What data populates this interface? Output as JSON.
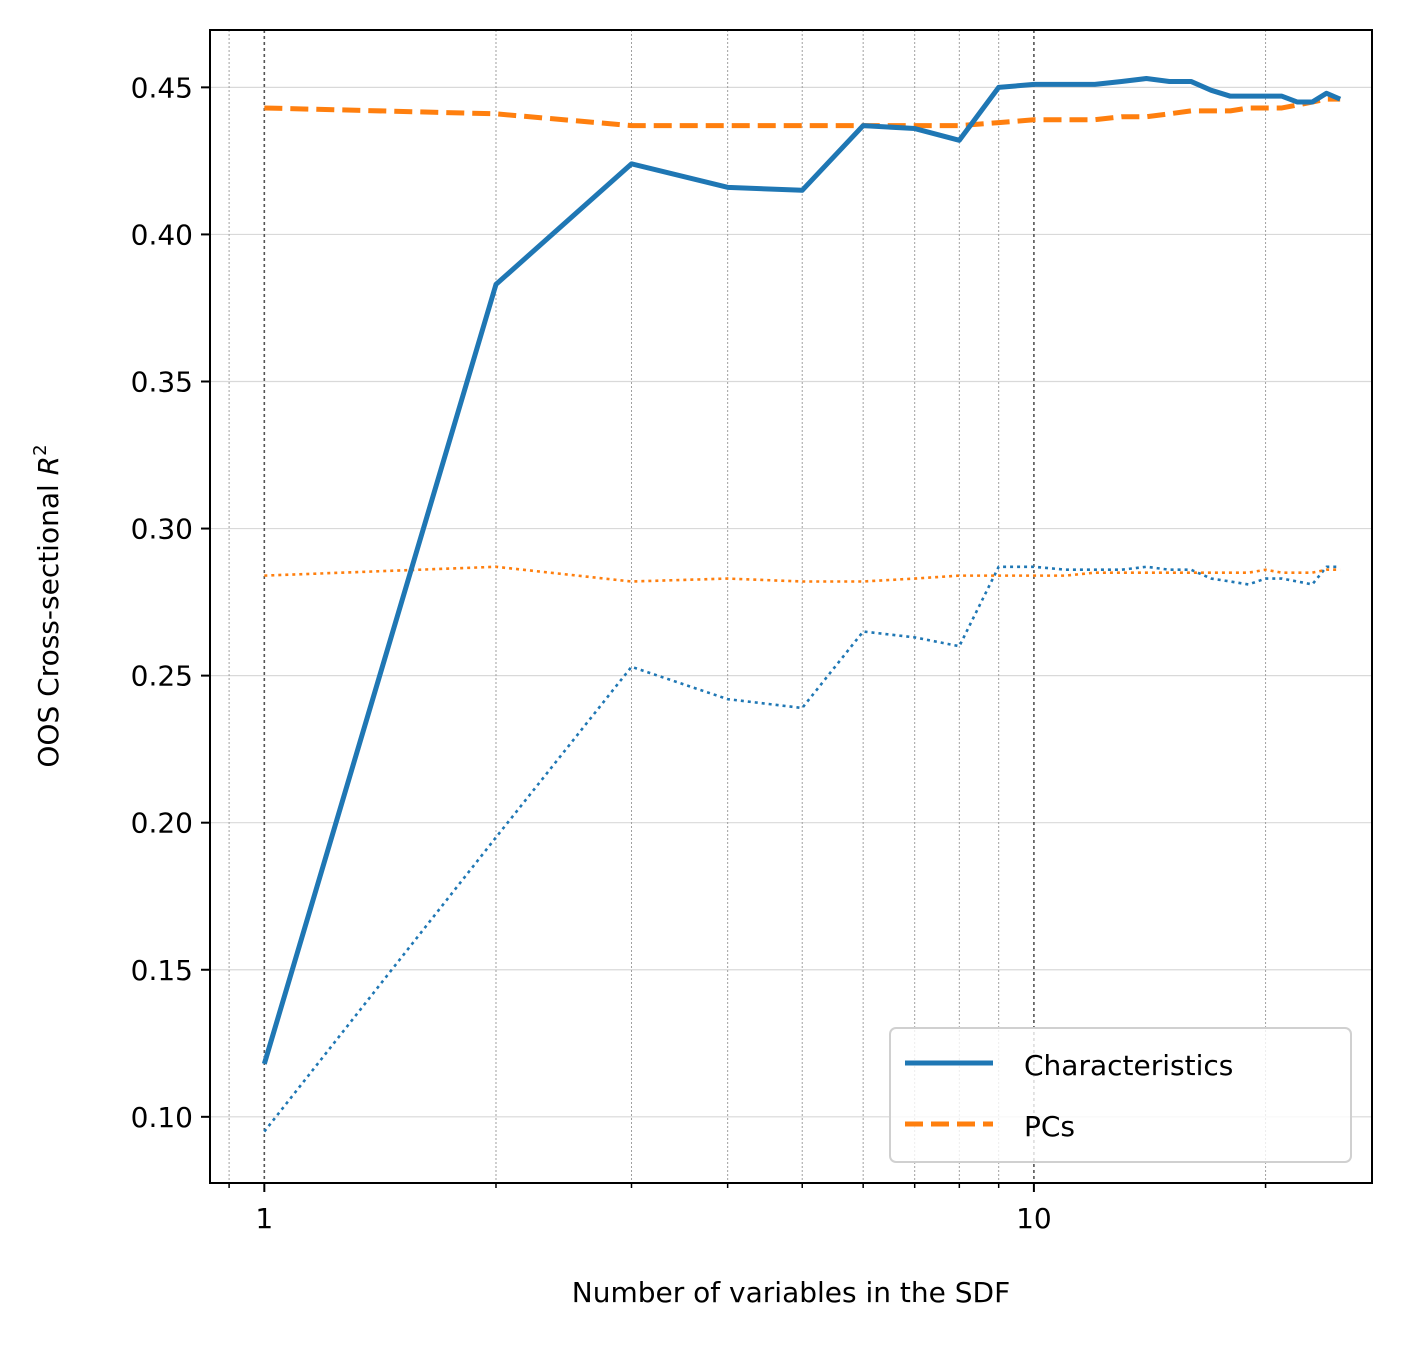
{
  "chart_data": {
    "type": "line",
    "title": "",
    "xlabel": "Number of variables in the SDF",
    "ylabel": "OOS Cross-sectional",
    "ylabel_math": "R",
    "ylabel_sup": "2",
    "x_scale": "log",
    "xlim": [
      0.85,
      27.5
    ],
    "ylim": [
      0.0775,
      0.4695
    ],
    "x_ticks": [
      1,
      10
    ],
    "x_tick_labels": [
      "1",
      "10"
    ],
    "y_ticks": [
      0.1,
      0.15,
      0.2,
      0.25,
      0.3,
      0.35,
      0.4,
      0.45
    ],
    "y_tick_labels": [
      "0.10",
      "0.15",
      "0.20",
      "0.25",
      "0.30",
      "0.35",
      "0.40",
      "0.45"
    ],
    "grid": true,
    "legend_position": "lower-right",
    "legend": [
      "Characteristics",
      "PCs"
    ],
    "series": [
      {
        "name": "Characteristics",
        "style": "solid",
        "color": "#1f77b4",
        "x": [
          1,
          2,
          3,
          4,
          5,
          6,
          7,
          8,
          9,
          10,
          11,
          12,
          13,
          14,
          15,
          16,
          17,
          18,
          19,
          20,
          21,
          22,
          23,
          24,
          25
        ],
        "y": [
          0.118,
          0.383,
          0.424,
          0.416,
          0.415,
          0.437,
          0.436,
          0.432,
          0.45,
          0.451,
          0.451,
          0.451,
          0.452,
          0.453,
          0.452,
          0.452,
          0.449,
          0.447,
          0.447,
          0.447,
          0.447,
          0.445,
          0.445,
          0.448,
          0.446
        ]
      },
      {
        "name": "PCs",
        "style": "dashed",
        "color": "#ff7f0e",
        "x": [
          1,
          2,
          3,
          4,
          5,
          6,
          7,
          8,
          9,
          10,
          11,
          12,
          13,
          14,
          15,
          16,
          17,
          18,
          19,
          20,
          21,
          22,
          23,
          24,
          25
        ],
        "y": [
          0.443,
          0.441,
          0.437,
          0.437,
          0.437,
          0.437,
          0.437,
          0.437,
          0.438,
          0.439,
          0.439,
          0.439,
          0.44,
          0.44,
          0.441,
          0.442,
          0.442,
          0.442,
          0.443,
          0.443,
          0.443,
          0.444,
          0.445,
          0.446,
          0.446
        ]
      },
      {
        "style": "dotted",
        "color": "#1f77b4",
        "x": [
          1,
          2,
          3,
          4,
          5,
          6,
          7,
          8,
          9,
          10,
          11,
          12,
          13,
          14,
          15,
          16,
          17,
          18,
          19,
          20,
          21,
          22,
          23,
          24,
          25
        ],
        "y": [
          0.095,
          0.195,
          0.253,
          0.242,
          0.239,
          0.265,
          0.263,
          0.26,
          0.287,
          0.287,
          0.286,
          0.286,
          0.286,
          0.287,
          0.286,
          0.286,
          0.283,
          0.282,
          0.281,
          0.283,
          0.283,
          0.282,
          0.281,
          0.287,
          0.287
        ]
      },
      {
        "style": "dotted",
        "color": "#ff7f0e",
        "x": [
          1,
          2,
          3,
          4,
          5,
          6,
          7,
          8,
          9,
          10,
          11,
          12,
          13,
          14,
          15,
          16,
          17,
          18,
          19,
          20,
          21,
          22,
          23,
          24,
          25
        ],
        "y": [
          0.284,
          0.287,
          0.282,
          0.283,
          0.282,
          0.282,
          0.283,
          0.284,
          0.284,
          0.284,
          0.284,
          0.285,
          0.285,
          0.285,
          0.285,
          0.285,
          0.285,
          0.285,
          0.285,
          0.286,
          0.285,
          0.285,
          0.285,
          0.286,
          0.286
        ]
      }
    ]
  }
}
